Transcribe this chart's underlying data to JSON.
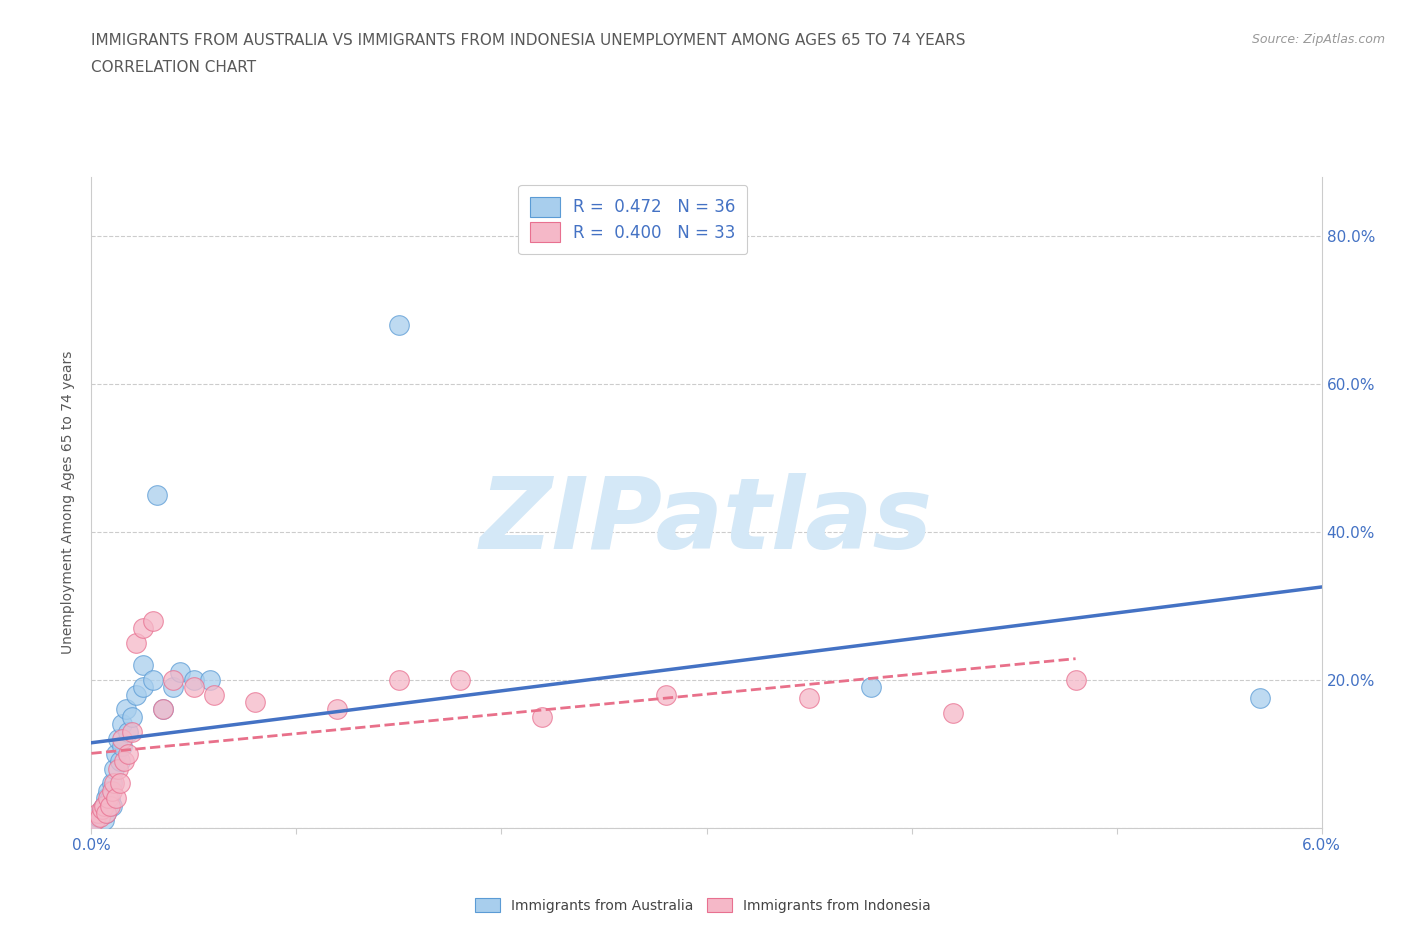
{
  "title_line1": "IMMIGRANTS FROM AUSTRALIA VS IMMIGRANTS FROM INDONESIA UNEMPLOYMENT AMONG AGES 65 TO 74 YEARS",
  "title_line2": "CORRELATION CHART",
  "source_text": "Source: ZipAtlas.com",
  "ylabel": "Unemployment Among Ages 65 to 74 years",
  "xlim": [
    0.0,
    0.06
  ],
  "ylim": [
    0.0,
    0.88
  ],
  "xtick_positions": [
    0.0,
    0.01,
    0.02,
    0.03,
    0.04,
    0.05,
    0.06
  ],
  "xtick_labels": [
    "0.0%",
    "",
    "",
    "",
    "",
    "",
    "6.0%"
  ],
  "ytick_positions": [
    0.0,
    0.2,
    0.4,
    0.6,
    0.8
  ],
  "ytick_labels": [
    "",
    "20.0%",
    "40.0%",
    "60.0%",
    "80.0%"
  ],
  "australia_color": "#A8CEED",
  "indonesia_color": "#F5B8C8",
  "australia_edge_color": "#5B9BD5",
  "indonesia_edge_color": "#E87090",
  "australia_line_color": "#4472C4",
  "indonesia_line_color": "#E8708A",
  "watermark": "ZIPatlas",
  "legend_R_australia": "R =  0.472   N = 36",
  "legend_R_indonesia": "R =  0.400   N = 33",
  "australia_x": [
    0.0002,
    0.0003,
    0.0004,
    0.0005,
    0.0005,
    0.0006,
    0.0006,
    0.0007,
    0.0007,
    0.0008,
    0.0008,
    0.0009,
    0.001,
    0.001,
    0.0011,
    0.0012,
    0.0013,
    0.0014,
    0.0015,
    0.0015,
    0.0017,
    0.0018,
    0.002,
    0.0022,
    0.0025,
    0.0025,
    0.003,
    0.0032,
    0.0035,
    0.004,
    0.0043,
    0.005,
    0.0058,
    0.015,
    0.038,
    0.057
  ],
  "australia_y": [
    0.01,
    0.015,
    0.02,
    0.025,
    0.02,
    0.03,
    0.01,
    0.04,
    0.02,
    0.05,
    0.03,
    0.04,
    0.06,
    0.03,
    0.08,
    0.1,
    0.12,
    0.09,
    0.14,
    0.11,
    0.16,
    0.13,
    0.15,
    0.18,
    0.19,
    0.22,
    0.2,
    0.45,
    0.16,
    0.19,
    0.21,
    0.2,
    0.2,
    0.68,
    0.19,
    0.175
  ],
  "indonesia_x": [
    0.0002,
    0.0003,
    0.0004,
    0.0005,
    0.0006,
    0.0007,
    0.0008,
    0.0009,
    0.001,
    0.0011,
    0.0012,
    0.0013,
    0.0014,
    0.0015,
    0.0016,
    0.0018,
    0.002,
    0.0022,
    0.0025,
    0.003,
    0.0035,
    0.004,
    0.005,
    0.006,
    0.008,
    0.012,
    0.015,
    0.018,
    0.022,
    0.028,
    0.035,
    0.042,
    0.048
  ],
  "indonesia_y": [
    0.01,
    0.02,
    0.015,
    0.025,
    0.03,
    0.02,
    0.04,
    0.03,
    0.05,
    0.06,
    0.04,
    0.08,
    0.06,
    0.12,
    0.09,
    0.1,
    0.13,
    0.25,
    0.27,
    0.28,
    0.16,
    0.2,
    0.19,
    0.18,
    0.17,
    0.16,
    0.2,
    0.2,
    0.15,
    0.18,
    0.175,
    0.155,
    0.2
  ],
  "background_color": "#FFFFFF",
  "grid_color": "#CCCCCC",
  "title_color": "#595959",
  "axis_label_color": "#595959",
  "tick_label_color": "#4472C4",
  "watermark_color": "#D4E8F7",
  "title_fontsize": 11,
  "axis_label_fontsize": 10,
  "tick_fontsize": 11,
  "legend_fontsize": 12,
  "source_fontsize": 9
}
